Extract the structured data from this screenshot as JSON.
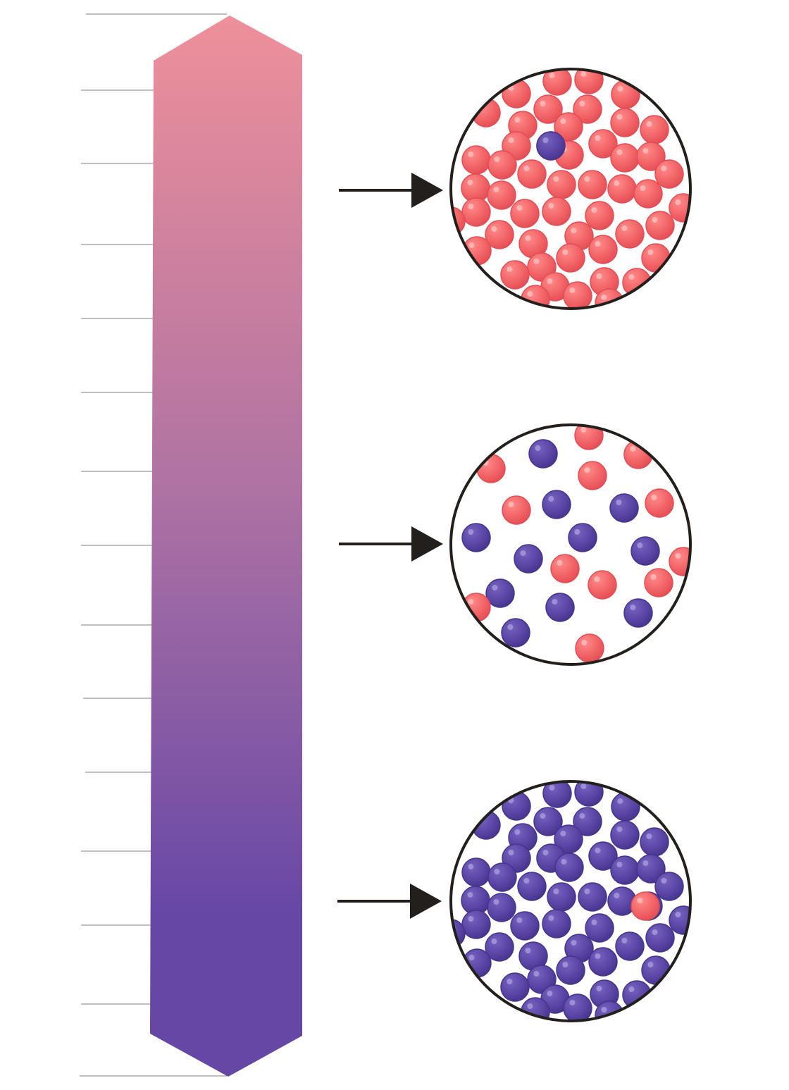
{
  "colors": {
    "acid": "#f26466",
    "acid_dark": "#e24d55",
    "base": "#5b45a6",
    "base_dark": "#46348c",
    "scale_top": "#ee909a",
    "scale_mid": "#ae72a3",
    "scale_bottom": "#6647a6",
    "tick": "#9a9a9a",
    "arrow": "#231f1d",
    "circle_outline": "#231f1d"
  },
  "scale": {
    "tick_count": 15
  },
  "samples": [
    {
      "id": "top",
      "dominant": "acid",
      "minority": "base",
      "acid_count": 60,
      "base_count": 1
    },
    {
      "id": "middle",
      "dominant": "mixed",
      "acid_count": 12,
      "base_count": 12
    },
    {
      "id": "bottom",
      "dominant": "base",
      "minority": "acid",
      "acid_count": 1,
      "base_count": 60
    }
  ]
}
